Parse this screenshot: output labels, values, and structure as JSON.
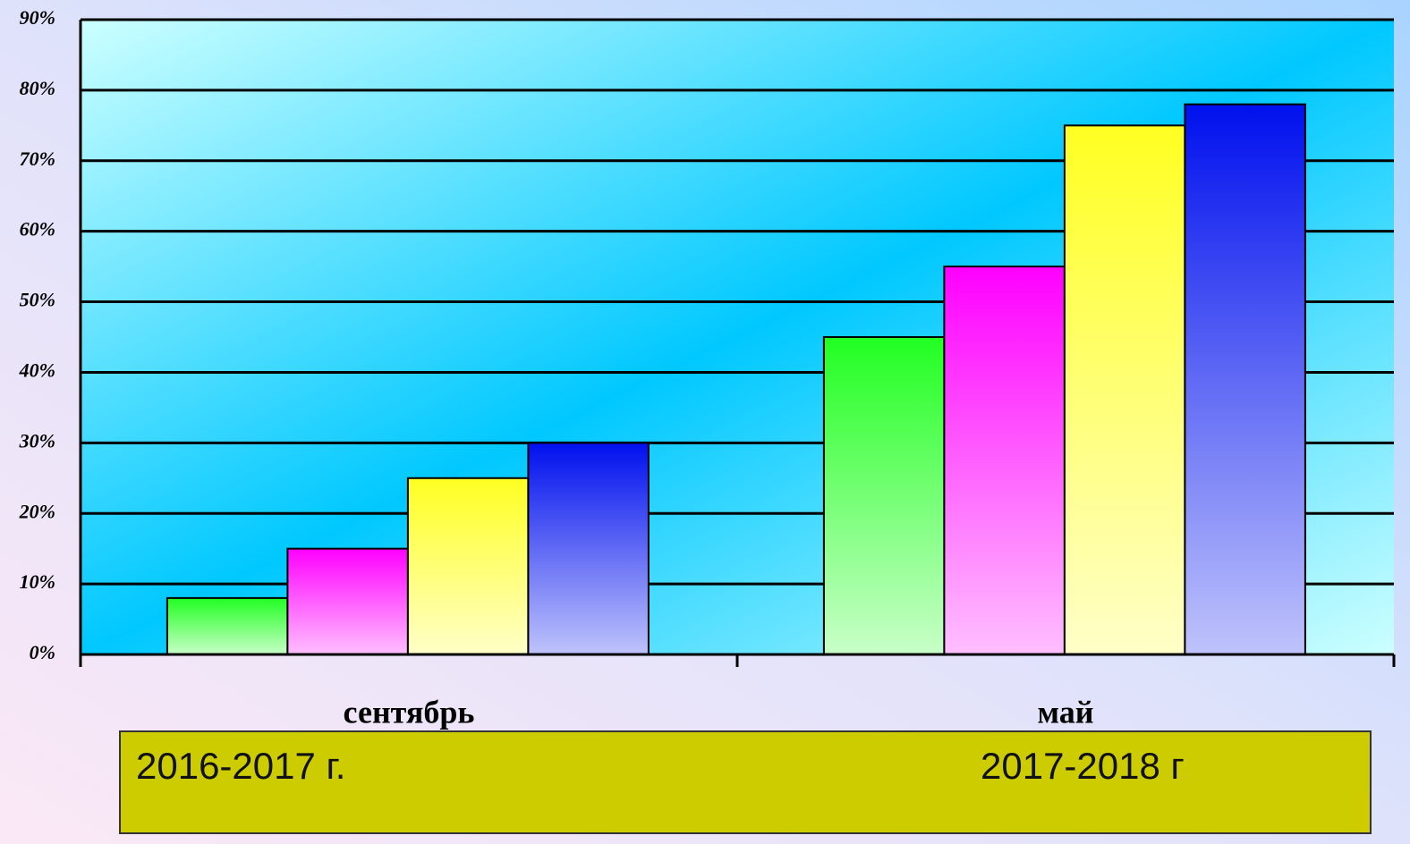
{
  "chart_data": {
    "type": "bar",
    "categories": [
      "сентябрь",
      "май"
    ],
    "series": [
      {
        "color": "#22ff22",
        "values": [
          8,
          45
        ]
      },
      {
        "color": "#ff00ff",
        "values": [
          15,
          55
        ]
      },
      {
        "color": "#ffff22",
        "values": [
          25,
          75
        ]
      },
      {
        "color": "#0010ee",
        "values": [
          30,
          78
        ]
      }
    ],
    "ylim": [
      0,
      90
    ],
    "yticks": [
      {
        "value": 0,
        "label": "0%"
      },
      {
        "value": 10,
        "label": "10%"
      },
      {
        "value": 20,
        "label": "20%"
      },
      {
        "value": 30,
        "label": "30%"
      },
      {
        "value": 40,
        "label": "40%"
      },
      {
        "value": 50,
        "label": "50%"
      },
      {
        "value": 60,
        "label": "60%"
      },
      {
        "value": 70,
        "label": "70%"
      },
      {
        "value": 80,
        "label": "80%"
      },
      {
        "value": 90,
        "label": "90%"
      }
    ],
    "grid": true,
    "annotations": [
      "2016-2017 г.",
      "2017-2018 г"
    ]
  }
}
